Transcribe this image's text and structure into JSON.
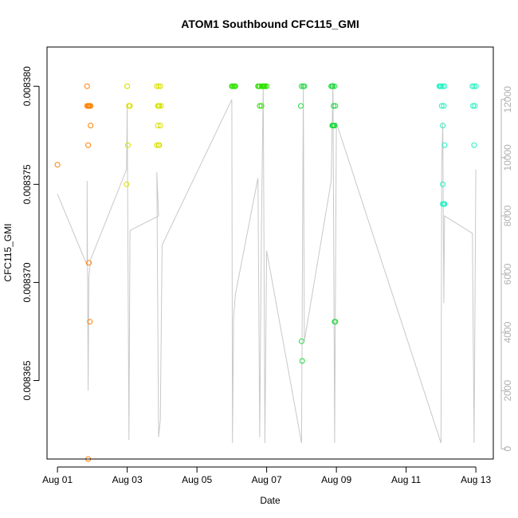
{
  "chart_data": {
    "type": "scatter",
    "title": "ATOM1 Southbound CFC115_GMI",
    "xlabel": "Date",
    "ylabel": "CFC115_GMI",
    "x_ticks": [
      "Aug 01",
      "Aug 03",
      "Aug 05",
      "Aug 07",
      "Aug 09",
      "Aug 11",
      "Aug 13"
    ],
    "x_tick_days": [
      1,
      3,
      5,
      7,
      9,
      11,
      13
    ],
    "xlim": [
      0.7,
      13.5
    ],
    "ylim": [
      0.008361,
      0.008382
    ],
    "y_ticks": [
      "0.008365",
      "0.008370",
      "0.008375",
      "0.008380"
    ],
    "y_tick_values": [
      0.008365,
      0.00837,
      0.008375,
      0.00838
    ],
    "right_axis": {
      "ticks": [
        "0",
        "2000",
        "4000",
        "6000",
        "8000",
        "10000",
        "12000"
      ],
      "tick_values": [
        0,
        2000,
        4000,
        6000,
        8000,
        10000,
        12000
      ],
      "lim": [
        -350,
        13800
      ],
      "color": "#b0b0b0"
    },
    "grid": false,
    "series": [
      {
        "color": "#ff8000",
        "points": [
          [
            1.0,
            0.008376
          ],
          [
            1.85,
            0.00838
          ],
          [
            1.85,
            0.008379
          ],
          [
            1.88,
            0.008379
          ],
          [
            1.9,
            0.008379
          ],
          [
            1.92,
            0.008379
          ],
          [
            1.95,
            0.008379
          ],
          [
            1.95,
            0.008378
          ],
          [
            1.88,
            0.008377
          ],
          [
            1.9,
            0.008371
          ],
          [
            1.93,
            0.008368
          ],
          [
            1.88,
            0.008361
          ]
        ]
      },
      {
        "color": "#d8e000",
        "points": [
          [
            3.0,
            0.00838
          ],
          [
            3.05,
            0.008379
          ],
          [
            3.05,
            0.008379
          ],
          [
            3.08,
            0.008379
          ],
          [
            3.0,
            0.00838
          ],
          [
            3.02,
            0.008377
          ],
          [
            2.98,
            0.008375
          ],
          [
            3.85,
            0.00838
          ],
          [
            3.9,
            0.00838
          ],
          [
            3.95,
            0.00838
          ],
          [
            3.88,
            0.008379
          ],
          [
            3.92,
            0.008379
          ],
          [
            3.97,
            0.008379
          ],
          [
            3.9,
            0.008379
          ],
          [
            3.95,
            0.008378
          ],
          [
            3.88,
            0.008378
          ],
          [
            3.85,
            0.008377
          ],
          [
            3.92,
            0.008377
          ],
          [
            3.9,
            0.008377
          ]
        ]
      },
      {
        "color": "#30e000",
        "points": [
          [
            6.0,
            0.00838
          ],
          [
            6.05,
            0.00838
          ],
          [
            6.08,
            0.00838
          ],
          [
            6.02,
            0.00838
          ],
          [
            6.1,
            0.00838
          ],
          [
            6.75,
            0.00838
          ],
          [
            6.8,
            0.00838
          ],
          [
            6.85,
            0.00838
          ],
          [
            6.9,
            0.00838
          ],
          [
            6.95,
            0.00838
          ],
          [
            7.0,
            0.00838
          ],
          [
            6.78,
            0.00838
          ],
          [
            6.88,
            0.00838
          ],
          [
            6.92,
            0.00838
          ],
          [
            6.8,
            0.008379
          ],
          [
            6.85,
            0.008379
          ],
          [
            6.95,
            0.00838
          ],
          [
            7.0,
            0.00838
          ]
        ]
      },
      {
        "color": "#20d840",
        "points": [
          [
            8.0,
            0.00838
          ],
          [
            8.05,
            0.00838
          ],
          [
            8.08,
            0.00838
          ],
          [
            7.98,
            0.008379
          ],
          [
            8.0,
            0.008367
          ],
          [
            8.02,
            0.008366
          ],
          [
            8.85,
            0.00838
          ],
          [
            8.9,
            0.00838
          ],
          [
            8.95,
            0.00838
          ],
          [
            8.88,
            0.00838
          ],
          [
            8.92,
            0.008379
          ],
          [
            8.97,
            0.008379
          ],
          [
            8.9,
            0.008378
          ],
          [
            8.95,
            0.008378
          ],
          [
            8.88,
            0.008378
          ],
          [
            8.92,
            0.008378
          ],
          [
            8.97,
            0.008368
          ],
          [
            8.95,
            0.008368
          ]
        ]
      },
      {
        "color": "#20f0c0",
        "points": [
          [
            11.95,
            0.00838
          ],
          [
            12.0,
            0.00838
          ],
          [
            12.05,
            0.00838
          ],
          [
            12.1,
            0.00838
          ],
          [
            11.98,
            0.00838
          ],
          [
            12.02,
            0.008379
          ],
          [
            12.08,
            0.008379
          ],
          [
            12.05,
            0.008378
          ],
          [
            12.1,
            0.008377
          ],
          [
            12.05,
            0.008375
          ],
          [
            12.1,
            0.008374
          ],
          [
            12.08,
            0.008374
          ],
          [
            12.05,
            0.008374
          ],
          [
            12.9,
            0.00838
          ],
          [
            12.95,
            0.00838
          ],
          [
            13.0,
            0.00838
          ],
          [
            12.92,
            0.008379
          ],
          [
            12.97,
            0.008379
          ],
          [
            12.95,
            0.008377
          ]
        ]
      }
    ],
    "right_series": {
      "color": "#c8c8c8",
      "points": [
        [
          1.0,
          8750
        ],
        [
          1.85,
          6300
        ],
        [
          1.85,
          9200
        ],
        [
          1.88,
          2000
        ],
        [
          1.9,
          5900
        ],
        [
          1.95,
          6500
        ],
        [
          2.98,
          9600
        ],
        [
          3.0,
          11800
        ],
        [
          3.05,
          300
        ],
        [
          3.08,
          7500
        ],
        [
          3.9,
          8000
        ],
        [
          3.85,
          9500
        ],
        [
          3.9,
          400
        ],
        [
          3.95,
          1000
        ],
        [
          4.0,
          7000
        ],
        [
          6.0,
          12000
        ],
        [
          6.02,
          200
        ],
        [
          6.05,
          4500
        ],
        [
          6.1,
          5300
        ],
        [
          6.75,
          9300
        ],
        [
          6.8,
          400
        ],
        [
          6.85,
          7700
        ],
        [
          6.9,
          12500
        ],
        [
          6.95,
          200
        ],
        [
          7.0,
          6800
        ],
        [
          8.0,
          200
        ],
        [
          8.05,
          12500
        ],
        [
          8.08,
          3700
        ],
        [
          8.85,
          9200
        ],
        [
          8.9,
          12600
        ],
        [
          8.95,
          200
        ],
        [
          9.0,
          11200
        ],
        [
          12.0,
          200
        ],
        [
          12.02,
          9700
        ],
        [
          12.05,
          11200
        ],
        [
          12.08,
          5000
        ],
        [
          12.1,
          8000
        ],
        [
          12.9,
          7400
        ],
        [
          12.95,
          200
        ],
        [
          13.0,
          9600
        ]
      ]
    }
  }
}
